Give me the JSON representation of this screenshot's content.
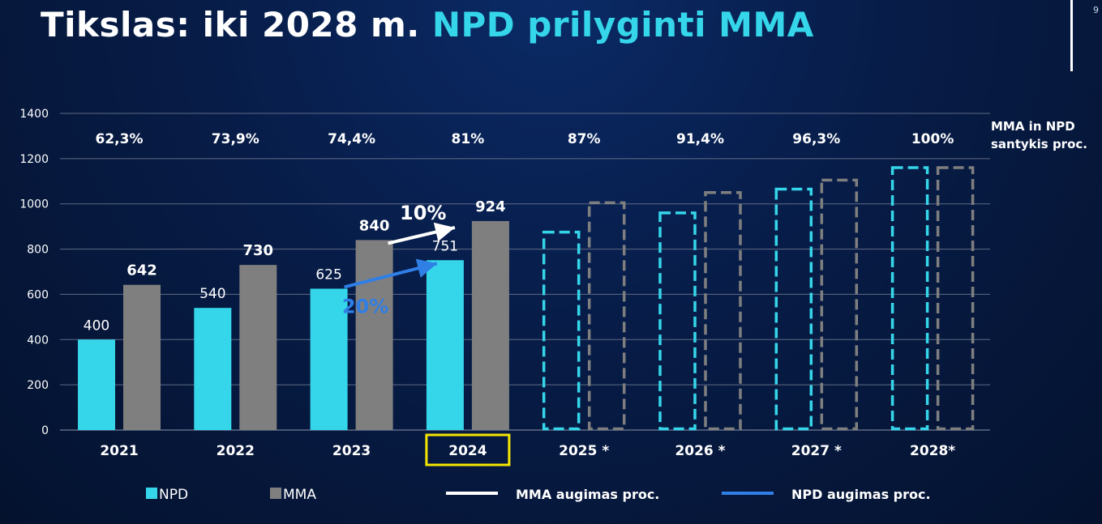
{
  "title_part1": "Tikslas: iki 2028 m.",
  "title_part2": "NPD prilyginti MMA",
  "page_number": "9",
  "colors": {
    "npd": "#35d6ea",
    "mma": "#7f7f7f",
    "mma_growth_arrow": "#ffffff",
    "npd_growth_arrow": "#2f7fe6",
    "highlight_box": "#f5e600",
    "grid": "#5f6b85"
  },
  "chart_data": {
    "type": "bar",
    "categories": [
      "2021",
      "2022",
      "2023",
      "2024",
      "2025 *",
      "2026 *",
      "2027 *",
      "2028*"
    ],
    "highlighted_category": "2024",
    "ylim": [
      0,
      1400
    ],
    "yticks": [
      0,
      200,
      400,
      600,
      800,
      1000,
      1200,
      1400
    ],
    "grid": true,
    "series": [
      {
        "name": "NPD",
        "values": [
          400,
          540,
          625,
          751,
          875,
          960,
          1065,
          1160
        ],
        "labels": [
          "400",
          "540",
          "625",
          "751",
          "",
          "",
          "",
          ""
        ],
        "projected_from_index": 4
      },
      {
        "name": "MMA",
        "values": [
          642,
          730,
          840,
          924,
          1005,
          1050,
          1105,
          1160
        ],
        "labels": [
          "642",
          "730",
          "840",
          "924",
          "",
          "",
          "",
          ""
        ],
        "projected_from_index": 4
      }
    ],
    "ratio_header": [
      "MMA in NPD",
      "santykis proc."
    ],
    "ratios": [
      "62,3%",
      "73,9%",
      "74,4%",
      "81%",
      "87%",
      "91,4%",
      "96,3%",
      "100%"
    ],
    "annotations": {
      "mma_growth": "10%",
      "npd_growth": "20%"
    },
    "legend": [
      {
        "label": "NPD",
        "kind": "box",
        "color": "#35d6ea"
      },
      {
        "label": "MMA",
        "kind": "box",
        "color": "#7f7f7f"
      },
      {
        "label": "MMA augimas proc.",
        "kind": "line",
        "color": "#ffffff"
      },
      {
        "label": "NPD augimas proc.",
        "kind": "line",
        "color": "#2f7fe6"
      }
    ],
    "legend_position": "bottom"
  }
}
